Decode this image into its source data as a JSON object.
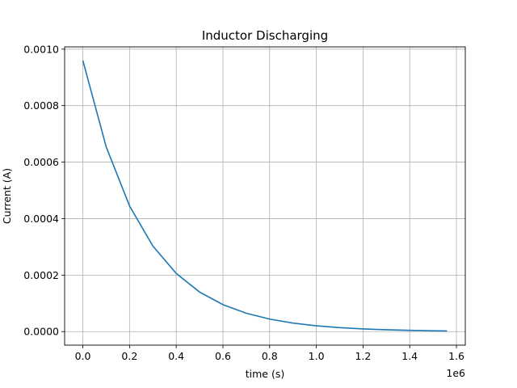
{
  "chart_data": {
    "type": "line",
    "title": "Inductor Discharging",
    "xlabel": "time (s)",
    "ylabel": "Current (A)",
    "x_offset_label": "1e6",
    "x_tick_labels": [
      "0.0",
      "0.2",
      "0.4",
      "0.6",
      "0.8",
      "1.0",
      "1.2",
      "1.4",
      "1.6"
    ],
    "y_tick_labels": [
      "0.0000",
      "0.0002",
      "0.0004",
      "0.0006",
      "0.0008",
      "0.0010"
    ],
    "xlim": [
      -78000,
      1638000
    ],
    "ylim": [
      -4.8e-05,
      0.001008
    ],
    "grid": true,
    "line_color": "#1f77b4",
    "series": [
      {
        "x": [
          0,
          100000,
          200000,
          300000,
          400000,
          500000,
          600000,
          700000,
          800000,
          900000,
          1000000,
          1100000,
          1200000,
          1300000,
          1400000,
          1500000,
          1560000
        ],
        "y": [
          0.00096,
          0.000654,
          0.000445,
          0.000303,
          0.000206,
          0.00014,
          9.55e-05,
          6.5e-05,
          4.43e-05,
          3.01e-05,
          2.05e-05,
          1.4e-05,
          9.5e-06,
          6.5e-06,
          4.4e-06,
          3e-06,
          2.4e-06
        ]
      }
    ]
  }
}
